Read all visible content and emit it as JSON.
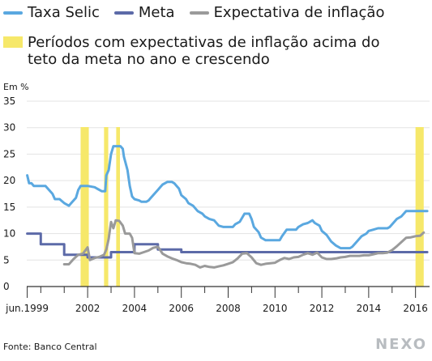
{
  "legend": {
    "selic": "Taxa Selic",
    "meta": "Meta",
    "expectativa": "Expectativa de inflação",
    "periodos": "Períodos com expectativas de inflação acima do teto da meta no ano e crescendo"
  },
  "colors": {
    "selic": "#5aa8e0",
    "meta": "#5c6aa8",
    "expectativa": "#9a9a9a",
    "periodos": "#f6e86a",
    "axis": "#333333",
    "grid": "#e3e3e3"
  },
  "footer": {
    "source": "Fonte: Banco Central",
    "brand": "NEXO"
  },
  "chart_data": {
    "type": "line",
    "ylabel": "Em %",
    "ylim": [
      0,
      35
    ],
    "y_ticks": [
      0,
      5,
      10,
      15,
      20,
      25,
      30,
      35
    ],
    "xlim": [
      1999.4,
      2016.6
    ],
    "x_ticks": [
      {
        "value": 1999.42,
        "label": "jun.1999"
      },
      {
        "value": 2000,
        "label": ""
      },
      {
        "value": 2001,
        "label": ""
      },
      {
        "value": 2002,
        "label": "2002"
      },
      {
        "value": 2003,
        "label": ""
      },
      {
        "value": 2004,
        "label": "2004"
      },
      {
        "value": 2005,
        "label": ""
      },
      {
        "value": 2006,
        "label": "2006"
      },
      {
        "value": 2007,
        "label": ""
      },
      {
        "value": 2008,
        "label": "2008"
      },
      {
        "value": 2009,
        "label": ""
      },
      {
        "value": 2010,
        "label": "2010"
      },
      {
        "value": 2011,
        "label": ""
      },
      {
        "value": 2012,
        "label": "2012"
      },
      {
        "value": 2013,
        "label": ""
      },
      {
        "value": 2014,
        "label": "2014"
      },
      {
        "value": 2015,
        "label": ""
      },
      {
        "value": 2016,
        "label": "2016"
      }
    ],
    "periods": [
      [
        2001.7,
        2002.05
      ],
      [
        2002.7,
        2002.88
      ],
      [
        2003.22,
        2003.38
      ],
      [
        2016.0,
        2016.35
      ]
    ],
    "series": [
      {
        "name": "Taxa Selic",
        "key": "selic",
        "points": [
          [
            1999.42,
            21.0
          ],
          [
            1999.5,
            19.5
          ],
          [
            1999.6,
            19.5
          ],
          [
            1999.7,
            19.0
          ],
          [
            2000.0,
            19.0
          ],
          [
            2000.2,
            19.0
          ],
          [
            2000.3,
            18.5
          ],
          [
            2000.5,
            17.5
          ],
          [
            2000.6,
            16.5
          ],
          [
            2000.8,
            16.5
          ],
          [
            2001.0,
            15.75
          ],
          [
            2001.2,
            15.25
          ],
          [
            2001.3,
            15.75
          ],
          [
            2001.5,
            16.75
          ],
          [
            2001.6,
            18.25
          ],
          [
            2001.7,
            19.0
          ],
          [
            2002.0,
            19.0
          ],
          [
            2002.3,
            18.75
          ],
          [
            2002.4,
            18.5
          ],
          [
            2002.6,
            18.0
          ],
          [
            2002.75,
            18.0
          ],
          [
            2002.8,
            21.0
          ],
          [
            2002.9,
            22.0
          ],
          [
            2003.0,
            25.0
          ],
          [
            2003.1,
            26.5
          ],
          [
            2003.4,
            26.5
          ],
          [
            2003.5,
            26.0
          ],
          [
            2003.55,
            24.5
          ],
          [
            2003.7,
            22.0
          ],
          [
            2003.8,
            19.0
          ],
          [
            2003.9,
            17.0
          ],
          [
            2004.0,
            16.5
          ],
          [
            2004.2,
            16.25
          ],
          [
            2004.3,
            16.0
          ],
          [
            2004.5,
            16.0
          ],
          [
            2004.6,
            16.25
          ],
          [
            2004.7,
            16.75
          ],
          [
            2004.8,
            17.25
          ],
          [
            2004.9,
            17.75
          ],
          [
            2005.0,
            18.25
          ],
          [
            2005.1,
            18.75
          ],
          [
            2005.2,
            19.25
          ],
          [
            2005.4,
            19.75
          ],
          [
            2005.6,
            19.75
          ],
          [
            2005.7,
            19.5
          ],
          [
            2005.8,
            19.0
          ],
          [
            2005.9,
            18.5
          ],
          [
            2006.0,
            17.25
          ],
          [
            2006.2,
            16.5
          ],
          [
            2006.3,
            15.75
          ],
          [
            2006.5,
            15.25
          ],
          [
            2006.7,
            14.25
          ],
          [
            2006.9,
            13.75
          ],
          [
            2007.0,
            13.25
          ],
          [
            2007.2,
            12.75
          ],
          [
            2007.4,
            12.5
          ],
          [
            2007.6,
            11.5
          ],
          [
            2007.8,
            11.25
          ],
          [
            2008.0,
            11.25
          ],
          [
            2008.2,
            11.25
          ],
          [
            2008.3,
            11.75
          ],
          [
            2008.5,
            12.25
          ],
          [
            2008.7,
            13.75
          ],
          [
            2008.9,
            13.75
          ],
          [
            2009.0,
            12.75
          ],
          [
            2009.1,
            11.25
          ],
          [
            2009.3,
            10.25
          ],
          [
            2009.4,
            9.25
          ],
          [
            2009.6,
            8.75
          ],
          [
            2010.0,
            8.75
          ],
          [
            2010.2,
            8.75
          ],
          [
            2010.3,
            9.5
          ],
          [
            2010.5,
            10.75
          ],
          [
            2010.6,
            10.75
          ],
          [
            2010.9,
            10.75
          ],
          [
            2011.0,
            11.25
          ],
          [
            2011.2,
            11.75
          ],
          [
            2011.4,
            12.0
          ],
          [
            2011.6,
            12.5
          ],
          [
            2011.7,
            12.0
          ],
          [
            2011.9,
            11.5
          ],
          [
            2012.0,
            10.5
          ],
          [
            2012.2,
            9.75
          ],
          [
            2012.4,
            8.5
          ],
          [
            2012.6,
            7.75
          ],
          [
            2012.8,
            7.25
          ],
          [
            2013.0,
            7.25
          ],
          [
            2013.2,
            7.25
          ],
          [
            2013.3,
            7.5
          ],
          [
            2013.5,
            8.5
          ],
          [
            2013.7,
            9.5
          ],
          [
            2013.9,
            10.0
          ],
          [
            2014.0,
            10.5
          ],
          [
            2014.2,
            10.75
          ],
          [
            2014.4,
            11.0
          ],
          [
            2014.8,
            11.0
          ],
          [
            2014.9,
            11.25
          ],
          [
            2015.0,
            11.75
          ],
          [
            2015.2,
            12.75
          ],
          [
            2015.4,
            13.25
          ],
          [
            2015.6,
            14.25
          ],
          [
            2016.0,
            14.25
          ],
          [
            2016.5,
            14.25
          ]
        ]
      },
      {
        "name": "Meta",
        "key": "meta",
        "points": [
          [
            1999.42,
            10.0
          ],
          [
            2000.0,
            10.0
          ],
          [
            2000.0,
            8.0
          ],
          [
            2001.0,
            8.0
          ],
          [
            2001.0,
            6.0
          ],
          [
            2002.0,
            6.0
          ],
          [
            2002.0,
            5.5
          ],
          [
            2002.7,
            5.5
          ],
          [
            2003.0,
            5.5
          ],
          [
            2003.0,
            6.5
          ],
          [
            2004.0,
            6.5
          ],
          [
            2004.0,
            8.0
          ],
          [
            2005.0,
            8.0
          ],
          [
            2005.0,
            7.0
          ],
          [
            2006.0,
            7.0
          ],
          [
            2006.0,
            6.5
          ],
          [
            2016.5,
            6.5
          ]
        ]
      },
      {
        "name": "Expectativa de inflação",
        "key": "expectativa",
        "points": [
          [
            2001.0,
            4.2
          ],
          [
            2001.2,
            4.2
          ],
          [
            2001.4,
            5.2
          ],
          [
            2001.6,
            6.0
          ],
          [
            2001.8,
            6.2
          ],
          [
            2001.9,
            6.8
          ],
          [
            2002.0,
            7.4
          ],
          [
            2002.1,
            5.0
          ],
          [
            2002.3,
            5.4
          ],
          [
            2002.5,
            5.6
          ],
          [
            2002.7,
            6.0
          ],
          [
            2002.8,
            7.0
          ],
          [
            2002.9,
            9.0
          ],
          [
            2003.0,
            12.2
          ],
          [
            2003.1,
            11.0
          ],
          [
            2003.2,
            12.5
          ],
          [
            2003.35,
            12.4
          ],
          [
            2003.5,
            11.5
          ],
          [
            2003.6,
            10.0
          ],
          [
            2003.8,
            10.0
          ],
          [
            2003.9,
            9.2
          ],
          [
            2004.0,
            6.3
          ],
          [
            2004.2,
            6.2
          ],
          [
            2004.4,
            6.5
          ],
          [
            2004.6,
            6.8
          ],
          [
            2004.8,
            7.3
          ],
          [
            2005.0,
            7.5
          ],
          [
            2005.2,
            6.2
          ],
          [
            2005.4,
            5.7
          ],
          [
            2005.6,
            5.3
          ],
          [
            2005.8,
            5.0
          ],
          [
            2006.0,
            4.6
          ],
          [
            2006.2,
            4.4
          ],
          [
            2006.4,
            4.3
          ],
          [
            2006.6,
            4.1
          ],
          [
            2006.8,
            3.6
          ],
          [
            2007.0,
            3.9
          ],
          [
            2007.2,
            3.7
          ],
          [
            2007.4,
            3.6
          ],
          [
            2007.6,
            3.8
          ],
          [
            2007.8,
            4.0
          ],
          [
            2008.0,
            4.3
          ],
          [
            2008.2,
            4.6
          ],
          [
            2008.4,
            5.3
          ],
          [
            2008.6,
            6.2
          ],
          [
            2008.8,
            6.3
          ],
          [
            2009.0,
            5.5
          ],
          [
            2009.2,
            4.4
          ],
          [
            2009.4,
            4.1
          ],
          [
            2009.6,
            4.3
          ],
          [
            2009.8,
            4.4
          ],
          [
            2010.0,
            4.5
          ],
          [
            2010.2,
            5.0
          ],
          [
            2010.4,
            5.4
          ],
          [
            2010.6,
            5.2
          ],
          [
            2010.8,
            5.5
          ],
          [
            2011.0,
            5.6
          ],
          [
            2011.2,
            6.0
          ],
          [
            2011.4,
            6.3
          ],
          [
            2011.6,
            6.0
          ],
          [
            2011.8,
            6.4
          ],
          [
            2012.0,
            5.5
          ],
          [
            2012.2,
            5.2
          ],
          [
            2012.4,
            5.2
          ],
          [
            2012.6,
            5.3
          ],
          [
            2012.8,
            5.5
          ],
          [
            2013.0,
            5.6
          ],
          [
            2013.2,
            5.8
          ],
          [
            2013.4,
            5.8
          ],
          [
            2013.6,
            5.8
          ],
          [
            2013.8,
            5.9
          ],
          [
            2014.0,
            5.9
          ],
          [
            2014.2,
            6.1
          ],
          [
            2014.4,
            6.3
          ],
          [
            2014.6,
            6.3
          ],
          [
            2014.8,
            6.4
          ],
          [
            2015.0,
            6.9
          ],
          [
            2015.2,
            7.6
          ],
          [
            2015.4,
            8.4
          ],
          [
            2015.6,
            9.2
          ],
          [
            2015.8,
            9.3
          ],
          [
            2016.0,
            9.5
          ],
          [
            2016.2,
            9.6
          ],
          [
            2016.35,
            10.2
          ]
        ]
      }
    ]
  }
}
